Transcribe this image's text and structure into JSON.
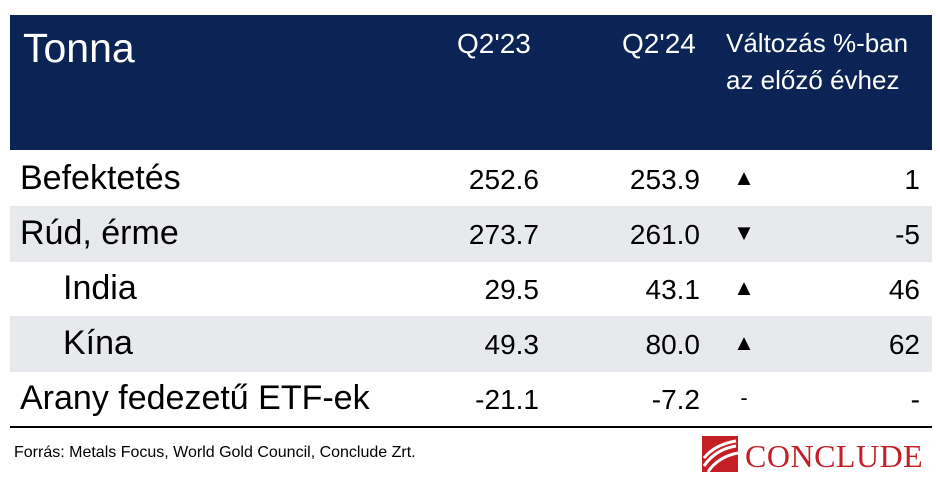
{
  "table": {
    "header": {
      "title": "Tonna",
      "col_q23": "Q2'23",
      "col_q24": "Q2'24",
      "col_change_line1": "Változás %-ban",
      "col_change_line2": "az előző évhez"
    },
    "rows": [
      {
        "label": "Befektetés",
        "q23": "252.6",
        "q24": "253.9",
        "arrow": "▲",
        "change": "1"
      },
      {
        "label": "Rúd, érme",
        "q23": "273.7",
        "q24": "261.0",
        "arrow": "▼",
        "change": "-5"
      },
      {
        "label": "India",
        "q23": "29.5",
        "q24": "43.1",
        "arrow": "▲",
        "change": "46"
      },
      {
        "label": "Kína",
        "q23": "49.3",
        "q24": "80.0",
        "arrow": "▲",
        "change": "62"
      },
      {
        "label": "Arany fedezetű ETF-ek",
        "q23": "-21.1",
        "q24": "-7.2",
        "arrow": "-",
        "change": "-"
      }
    ]
  },
  "footer": {
    "source": "Forrás: Metals Focus, World Gold Council, Conclude Zrt.",
    "logo_text": "CONCLUDE"
  },
  "colors": {
    "header_bg": "#0b2455",
    "alt_row_bg": "#e7e9ed",
    "brand_red": "#c41f25"
  }
}
